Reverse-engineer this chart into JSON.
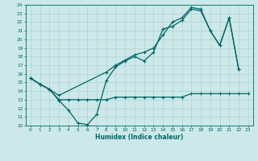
{
  "xlabel": "Humidex (Indice chaleur)",
  "xlim": [
    -0.5,
    23.5
  ],
  "ylim": [
    10,
    24
  ],
  "yticks": [
    10,
    11,
    12,
    13,
    14,
    15,
    16,
    17,
    18,
    19,
    20,
    21,
    22,
    23,
    24
  ],
  "xticks": [
    0,
    1,
    2,
    3,
    4,
    5,
    6,
    7,
    8,
    9,
    10,
    11,
    12,
    13,
    14,
    15,
    16,
    17,
    18,
    19,
    20,
    21,
    22,
    23
  ],
  "line_color": "#006666",
  "bg_color": "#cce8e8",
  "grid_color": "#aacece",
  "line1_x": [
    0,
    1,
    2,
    3,
    4,
    5,
    6,
    7,
    8,
    9,
    10,
    11,
    12,
    13,
    14,
    15,
    16,
    17,
    18,
    19,
    20,
    21,
    22
  ],
  "line1_y": [
    15.5,
    14.8,
    14.2,
    12.9,
    11.8,
    10.3,
    10.1,
    11.3,
    15.2,
    16.8,
    17.5,
    18.0,
    17.5,
    18.5,
    21.2,
    21.5,
    22.2,
    23.5,
    23.3,
    21.0,
    19.3,
    22.5,
    16.5
  ],
  "line2_x": [
    0,
    1,
    2,
    3,
    4,
    5,
    6,
    7,
    8,
    9,
    10,
    11,
    12,
    13,
    14,
    15,
    16,
    17,
    18,
    19,
    20,
    21,
    22,
    23
  ],
  "line2_y": [
    15.5,
    14.8,
    14.2,
    13.0,
    13.0,
    13.0,
    13.0,
    13.0,
    13.0,
    13.3,
    13.3,
    13.3,
    13.3,
    13.3,
    13.3,
    13.3,
    13.3,
    13.7,
    13.7,
    13.7,
    13.7,
    13.7,
    13.7,
    13.7
  ],
  "line3_x": [
    0,
    1,
    2,
    3,
    8,
    9,
    10,
    11,
    12,
    13,
    14,
    15,
    16,
    17,
    18,
    19,
    20,
    21,
    22
  ],
  "line3_y": [
    15.5,
    14.8,
    14.2,
    13.5,
    16.2,
    17.0,
    17.6,
    18.2,
    18.5,
    19.0,
    20.5,
    22.0,
    22.5,
    23.7,
    23.5,
    21.0,
    19.3,
    22.5,
    16.5
  ]
}
